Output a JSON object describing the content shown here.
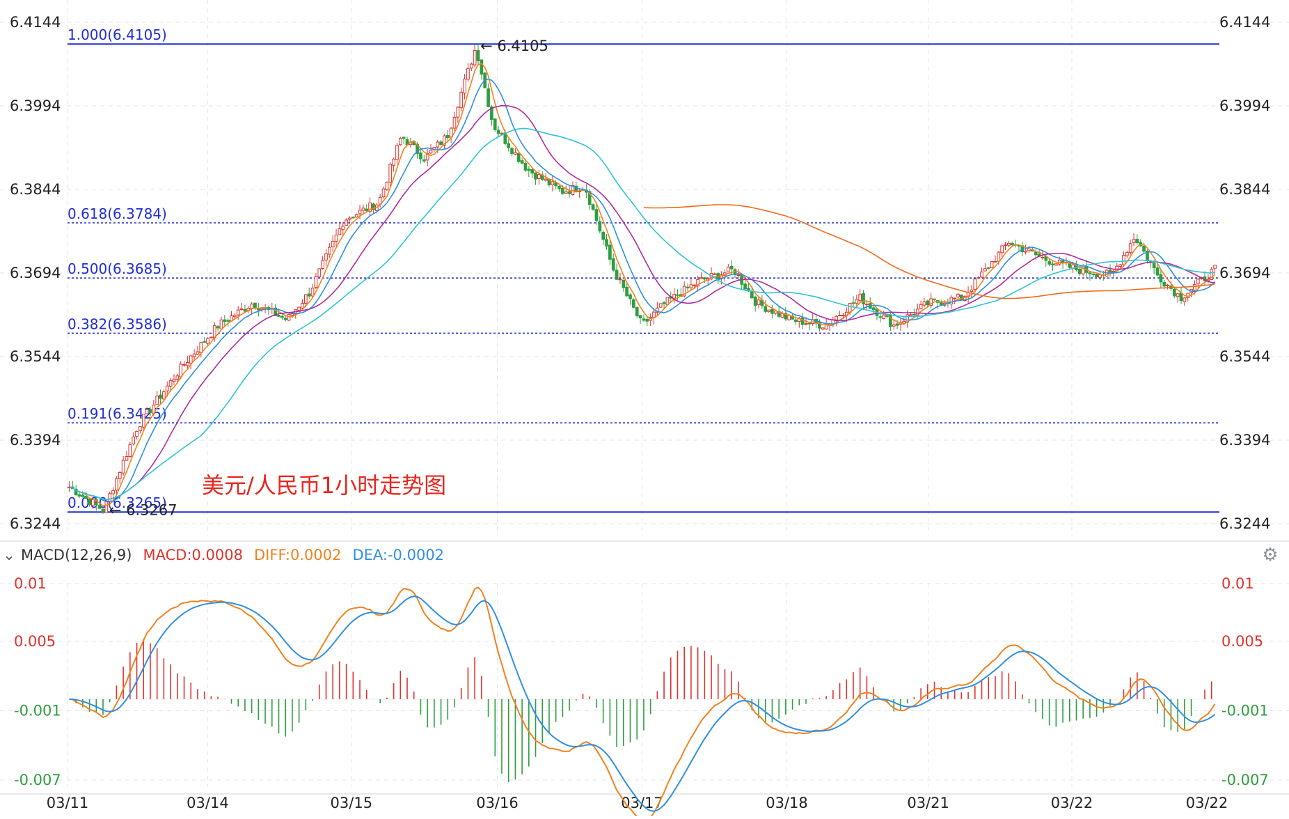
{
  "chart_data": {
    "type": "candlestick",
    "title": "美元/人民币1小时走势图",
    "x_labels": [
      "03/11",
      "03/14",
      "03/15",
      "03/16",
      "03/17",
      "03/18",
      "03/21",
      "03/22"
    ],
    "price_axis": {
      "ticks": [
        "6.4144",
        "6.3994",
        "6.3844",
        "6.3694",
        "6.3544",
        "6.3394",
        "6.3244"
      ],
      "range": [
        6.3244,
        6.4144
      ]
    },
    "fibonacci": [
      {
        "label": "1.000(6.4105)",
        "value": 6.4105,
        "style": "solid"
      },
      {
        "label": "0.618(6.3784)",
        "value": 6.3784,
        "style": "dotted"
      },
      {
        "label": "0.500(6.3685)",
        "value": 6.3685,
        "style": "dotted"
      },
      {
        "label": "0.382(6.3586)",
        "value": 6.3586,
        "style": "dotted"
      },
      {
        "label": "0.191(6.3425)",
        "value": 6.3425,
        "style": "dotted"
      },
      {
        "label": "0.000(6.3265)",
        "value": 6.3265,
        "style": "solid"
      }
    ],
    "annotations": {
      "high": {
        "text": "6.4105",
        "value": 6.4105,
        "bar_fraction": 0.355
      },
      "low": {
        "text": "6.3267",
        "value": 6.3267,
        "bar_fraction": 0.032
      }
    },
    "price_path_keypoints": [
      [
        0.0,
        6.331
      ],
      [
        0.03,
        6.3268
      ],
      [
        0.06,
        6.342
      ],
      [
        0.1,
        6.353
      ],
      [
        0.13,
        6.36
      ],
      [
        0.16,
        6.364
      ],
      [
        0.19,
        6.361
      ],
      [
        0.21,
        6.366
      ],
      [
        0.24,
        6.379
      ],
      [
        0.27,
        6.382
      ],
      [
        0.29,
        6.394
      ],
      [
        0.31,
        6.39
      ],
      [
        0.33,
        6.394
      ],
      [
        0.355,
        6.41
      ],
      [
        0.37,
        6.396
      ],
      [
        0.4,
        6.388
      ],
      [
        0.43,
        6.384
      ],
      [
        0.45,
        6.385
      ],
      [
        0.475,
        6.37
      ],
      [
        0.5,
        6.36
      ],
      [
        0.52,
        6.364
      ],
      [
        0.55,
        6.368
      ],
      [
        0.58,
        6.37
      ],
      [
        0.6,
        6.364
      ],
      [
        0.63,
        6.361
      ],
      [
        0.66,
        6.36
      ],
      [
        0.69,
        6.365
      ],
      [
        0.72,
        6.36
      ],
      [
        0.75,
        6.364
      ],
      [
        0.78,
        6.365
      ],
      [
        0.8,
        6.37
      ],
      [
        0.82,
        6.375
      ],
      [
        0.85,
        6.372
      ],
      [
        0.88,
        6.37
      ],
      [
        0.91,
        6.369
      ],
      [
        0.93,
        6.376
      ],
      [
        0.95,
        6.369
      ],
      [
        0.97,
        6.365
      ],
      [
        1.0,
        6.37
      ]
    ],
    "moving_averages": [
      {
        "color": "#f0821e",
        "period": 5
      },
      {
        "color": "#2f8fe0",
        "period": 10
      },
      {
        "color": "#b02a9e",
        "period": 20
      },
      {
        "color": "#2ec4d6",
        "period": 40
      },
      {
        "color": "#f46a1b",
        "period": 120
      }
    ],
    "macd": {
      "label": "MACD(12,26,9)",
      "macd_text": "MACD:0.0008",
      "diff_text": "DIFF:0.0002",
      "dea_text": "DEA:-0.0002",
      "axis_ticks": [
        "0.01",
        "0.005",
        "-0.001",
        "-0.007"
      ],
      "axis_values": [
        0.01,
        0.005,
        -0.001,
        -0.007
      ]
    },
    "colors": {
      "up": "#e0322f",
      "down": "#2e9e3e",
      "fib": "#1f2ed0",
      "fib_text": "#1f2ed0",
      "title": "#e8261e",
      "diff": "#f0821e",
      "dea": "#2f8fe0",
      "grid": "#e6e6e6"
    }
  }
}
